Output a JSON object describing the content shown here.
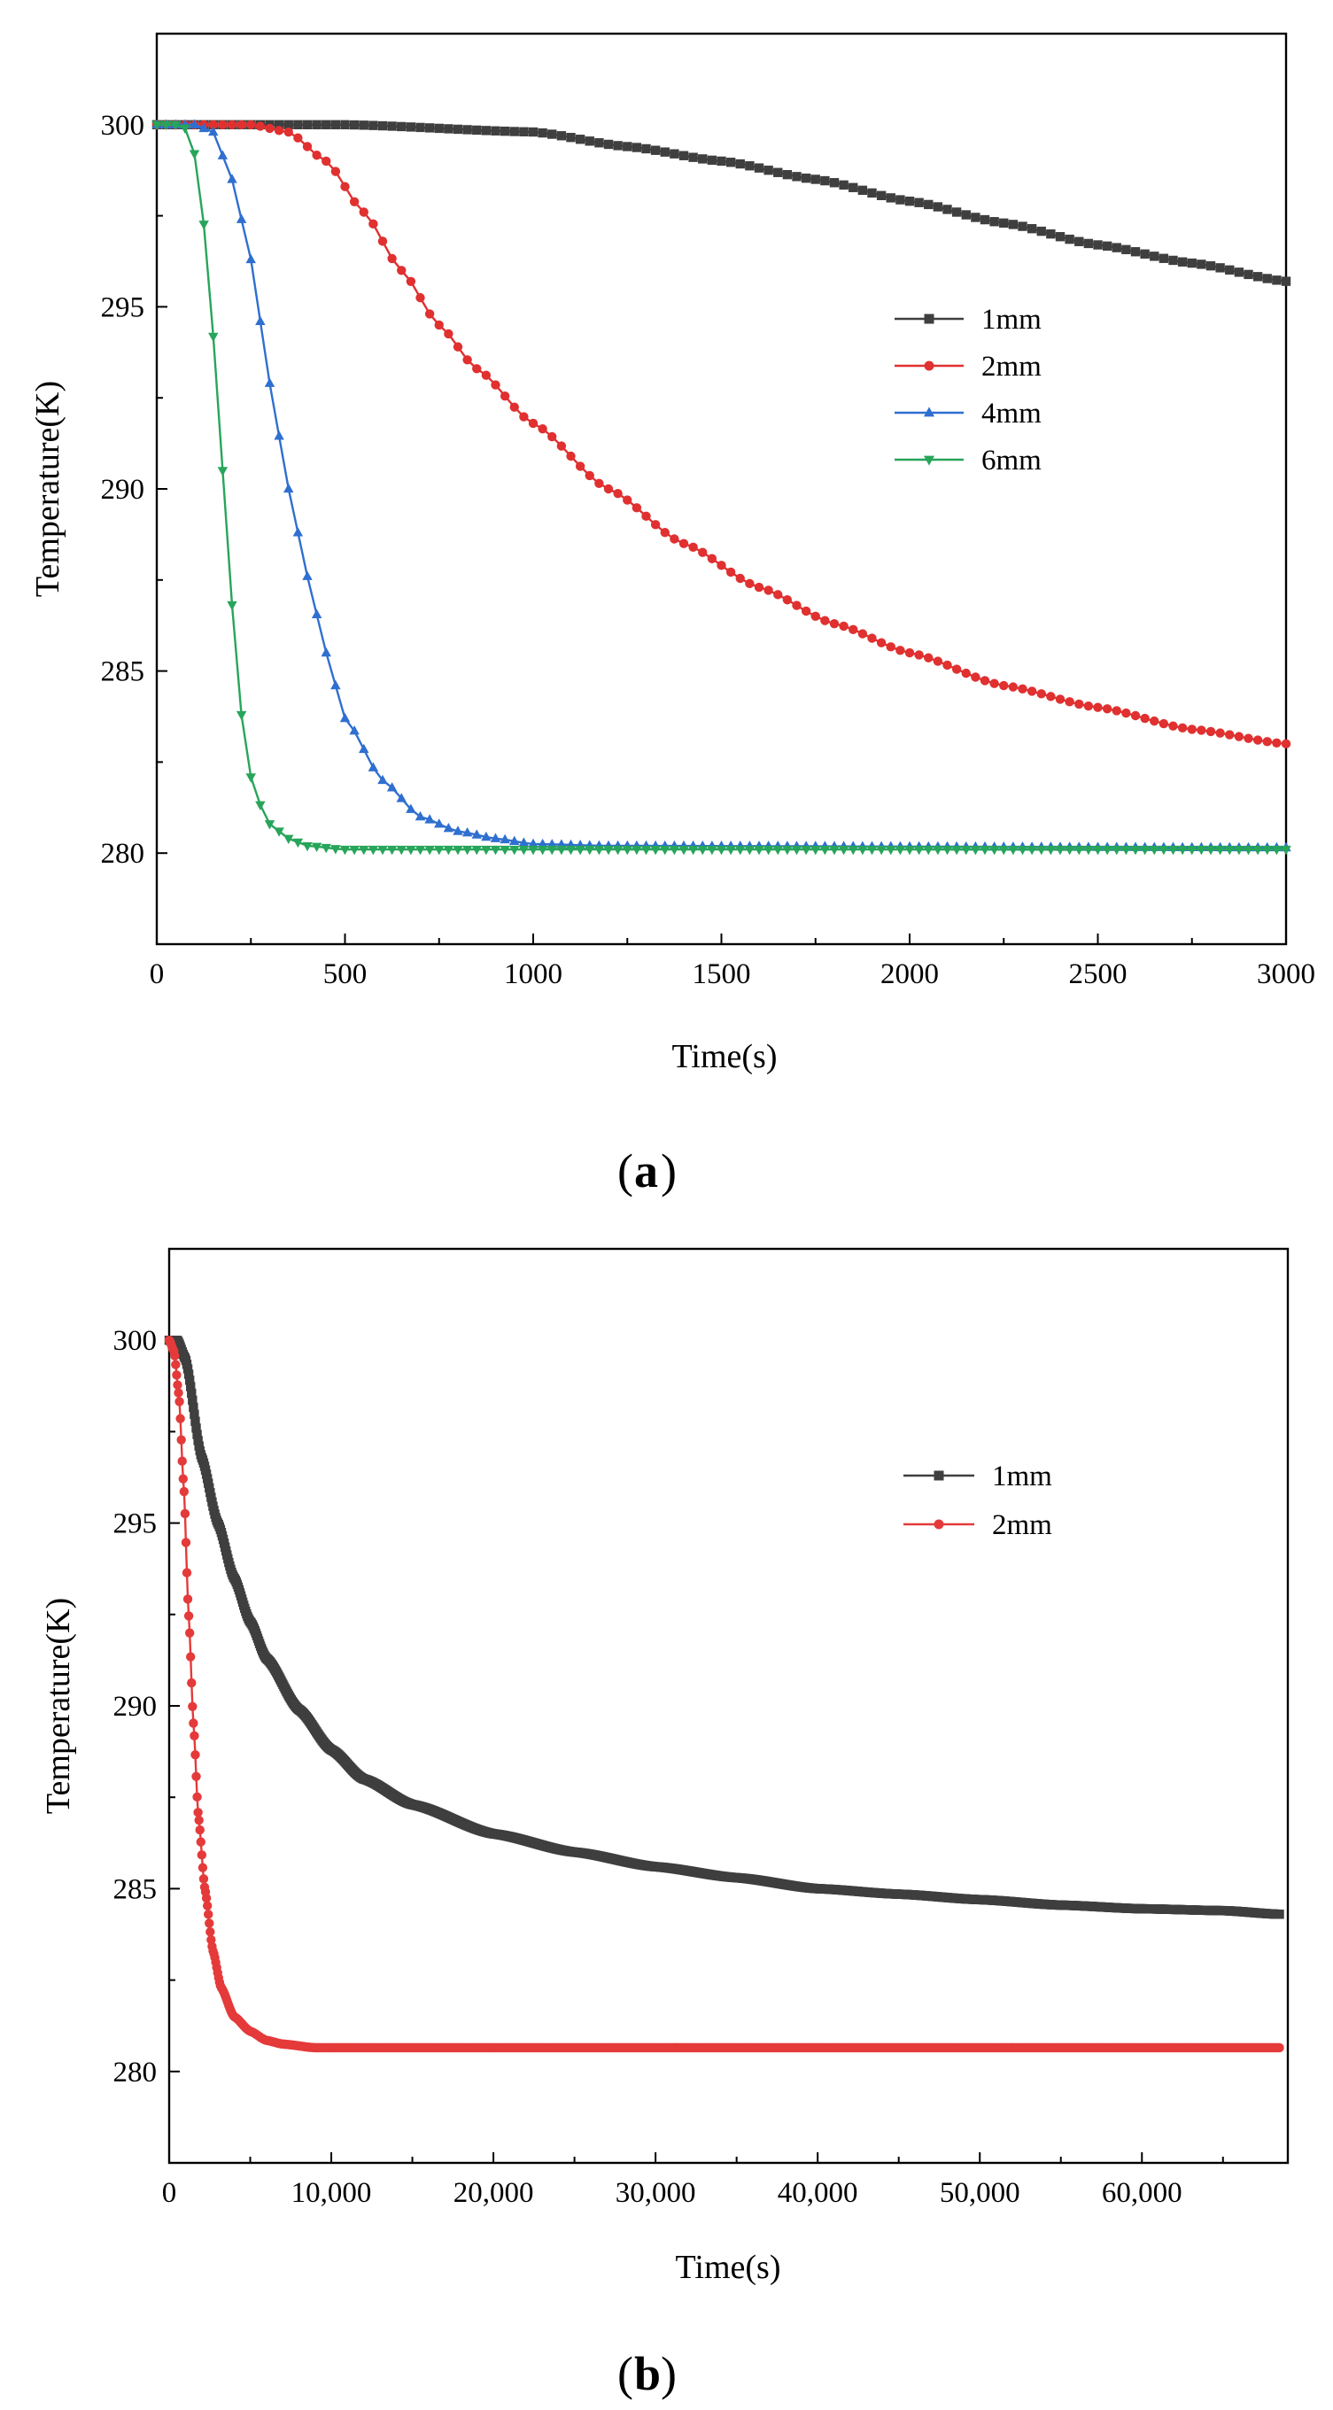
{
  "chart_data": [
    {
      "type": "line",
      "panel": "a",
      "xlabel": "Time(s)",
      "ylabel": "Temperature(K)",
      "xlim": [
        0,
        3000
      ],
      "ylim": [
        277.5,
        302.5
      ],
      "xticks": [
        0,
        500,
        1000,
        1500,
        2000,
        2500,
        3000
      ],
      "xtick_labels": [
        "0",
        "500",
        "1000",
        "1500",
        "2000",
        "2500",
        "3000"
      ],
      "yticks": [
        280,
        285,
        290,
        295,
        300
      ],
      "ytick_labels": [
        "280",
        "285",
        "290",
        "295",
        "300"
      ],
      "legend_position": "right-center",
      "series": [
        {
          "name": "1mm",
          "color": "#3f3f3f",
          "marker": "square",
          "points": [
            [
              0,
              300
            ],
            [
              500,
              300
            ],
            [
              1000,
              299.8
            ],
            [
              1250,
              299.4
            ],
            [
              1500,
              299.0
            ],
            [
              1750,
              298.5
            ],
            [
              2000,
              297.9
            ],
            [
              2250,
              297.3
            ],
            [
              2500,
              296.7
            ],
            [
              2750,
              296.2
            ],
            [
              3000,
              295.7
            ]
          ]
        },
        {
          "name": "2mm",
          "color": "#e03030",
          "marker": "circle",
          "points": [
            [
              0,
              300
            ],
            [
              250,
              300
            ],
            [
              350,
              299.8
            ],
            [
              450,
              299.0
            ],
            [
              550,
              297.6
            ],
            [
              650,
              296.0
            ],
            [
              750,
              294.5
            ],
            [
              850,
              293.3
            ],
            [
              1000,
              291.8
            ],
            [
              1200,
              290.0
            ],
            [
              1400,
              288.5
            ],
            [
              1600,
              287.3
            ],
            [
              1800,
              286.3
            ],
            [
              2000,
              285.5
            ],
            [
              2250,
              284.6
            ],
            [
              2500,
              284.0
            ],
            [
              2750,
              283.4
            ],
            [
              3000,
              283.0
            ]
          ]
        },
        {
          "name": "4mm",
          "color": "#2f6fd0",
          "marker": "triangle-up",
          "points": [
            [
              0,
              300
            ],
            [
              100,
              300
            ],
            [
              150,
              299.8
            ],
            [
              200,
              298.5
            ],
            [
              250,
              296.3
            ],
            [
              300,
              292.9
            ],
            [
              350,
              290.0
            ],
            [
              400,
              287.6
            ],
            [
              450,
              285.5
            ],
            [
              500,
              283.7
            ],
            [
              600,
              282.0
            ],
            [
              700,
              281.0
            ],
            [
              800,
              280.6
            ],
            [
              900,
              280.4
            ],
            [
              1000,
              280.25
            ],
            [
              1200,
              280.2
            ],
            [
              3000,
              280.15
            ]
          ]
        },
        {
          "name": "6mm",
          "color": "#27a55a",
          "marker": "triangle-down",
          "points": [
            [
              0,
              300
            ],
            [
              70,
              300
            ],
            [
              100,
              299.2
            ],
            [
              130,
              297.0
            ],
            [
              160,
              293.0
            ],
            [
              190,
              288.0
            ],
            [
              220,
              284.0
            ],
            [
              260,
              281.6
            ],
            [
              300,
              280.8
            ],
            [
              350,
              280.4
            ],
            [
              400,
              280.2
            ],
            [
              500,
              280.1
            ],
            [
              3000,
              280.1
            ]
          ]
        }
      ]
    },
    {
      "type": "line",
      "panel": "b",
      "xlabel": "Time(s)",
      "ylabel": "Temperature(K)",
      "xlim": [
        0,
        69000
      ],
      "ylim": [
        277.5,
        302.5
      ],
      "xticks": [
        0,
        10000,
        20000,
        30000,
        40000,
        50000,
        60000
      ],
      "xtick_labels": [
        "0",
        "10,000",
        "20,000",
        "30,000",
        "40,000",
        "50,000",
        "60,000"
      ],
      "yticks": [
        280,
        285,
        290,
        295,
        300
      ],
      "ytick_labels": [
        "280",
        "285",
        "290",
        "295",
        "300"
      ],
      "legend_position": "top-right",
      "series": [
        {
          "name": "1mm",
          "color": "#3f3f3f",
          "marker": "square",
          "points": [
            [
              0,
              300
            ],
            [
              500,
              300
            ],
            [
              1000,
              299.5
            ],
            [
              2000,
              296.8
            ],
            [
              3000,
              295.0
            ],
            [
              4000,
              293.5
            ],
            [
              5000,
              292.3
            ],
            [
              6000,
              291.3
            ],
            [
              8000,
              289.9
            ],
            [
              10000,
              288.8
            ],
            [
              12000,
              288.0
            ],
            [
              15000,
              287.3
            ],
            [
              20000,
              286.5
            ],
            [
              25000,
              286.0
            ],
            [
              30000,
              285.6
            ],
            [
              35000,
              285.3
            ],
            [
              40000,
              285.0
            ],
            [
              45000,
              284.85
            ],
            [
              50000,
              284.7
            ],
            [
              55000,
              284.55
            ],
            [
              60000,
              284.45
            ],
            [
              65000,
              284.4
            ],
            [
              68500,
              284.3
            ]
          ]
        },
        {
          "name": "2mm",
          "color": "#e53a3a",
          "marker": "circle",
          "points": [
            [
              0,
              300
            ],
            [
              300,
              299.7
            ],
            [
              600,
              298.5
            ],
            [
              900,
              296.0
            ],
            [
              1200,
              292.5
            ],
            [
              1500,
              289.5
            ],
            [
              1800,
              287.0
            ],
            [
              2200,
              285.0
            ],
            [
              2700,
              283.3
            ],
            [
              3200,
              282.3
            ],
            [
              4000,
              281.5
            ],
            [
              5000,
              281.1
            ],
            [
              6000,
              280.85
            ],
            [
              7000,
              280.75
            ],
            [
              9000,
              280.65
            ],
            [
              68500,
              280.65
            ]
          ]
        }
      ]
    }
  ],
  "panel_labels": {
    "a": "a",
    "b": "b"
  }
}
